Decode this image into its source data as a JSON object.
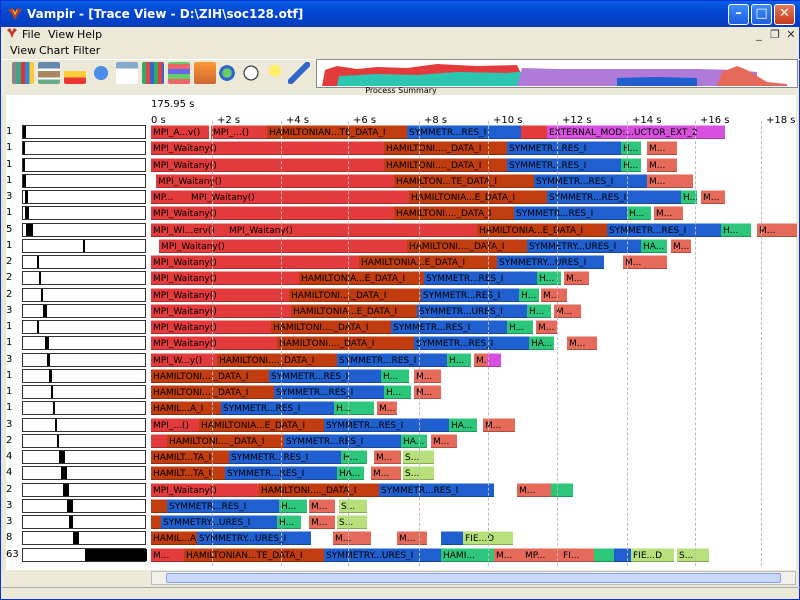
{
  "window": {
    "title": "Vampir - [Trace View - D:\\ZIH\\soc128.otf]"
  },
  "menu": [
    "File",
    "View",
    "Help"
  ],
  "menu2": [
    "View",
    "Chart",
    "Filter"
  ],
  "summary": {
    "label": "Process Summary"
  },
  "timeline": {
    "start_time": "175.95 s",
    "ticks": [
      "0 s",
      "+2 s",
      "+4 s",
      "+6 s",
      "+8 s",
      "+10 s",
      "+12 s",
      "+14 s",
      "+16 s",
      "+18 s"
    ]
  },
  "colors": {
    "mpi": "#e33b3b",
    "hamilton": "#c13d0f",
    "symm": "#1f5fcf",
    "ha": "#2cc77a",
    "other": "#e56a5a",
    "ext": "#d84fe0",
    "fie": "#b5e07a"
  },
  "rows": [
    {
      "label": "1",
      "segs": [
        [
          "mpi",
          "MPI_A...v()",
          150,
          208
        ],
        [
          "mpi",
          "MPI_...()",
          210,
          266
        ],
        [
          "hamilton",
          "HAMILTONIAN...TE_DATA_I",
          266,
          406
        ],
        [
          "symm",
          "SYMMETR...RES_I",
          406,
          520
        ],
        [
          "mpi",
          "",
          520,
          546
        ],
        [
          "ext",
          "EXTERNAL_MOD:...UCTOR_EXT_2",
          546,
          724
        ]
      ]
    },
    {
      "label": "1",
      "segs": [
        [
          "mpi",
          "MPI_Waitany()",
          150,
          383
        ],
        [
          "hamilton",
          "HAMILTONI...._DATA_I",
          383,
          506
        ],
        [
          "symm",
          "SYMMETR...RES_I",
          506,
          620
        ],
        [
          "ha",
          "H...",
          620,
          640
        ],
        [
          "other",
          "M...",
          646,
          676
        ]
      ]
    },
    {
      "label": "1",
      "segs": [
        [
          "mpi",
          "MPI_Waitany()",
          150,
          383
        ],
        [
          "hamilton",
          "HAMILTONI...._DATA_I",
          383,
          506
        ],
        [
          "symm",
          "SYMMETR...RES_I",
          506,
          620
        ],
        [
          "ha",
          "H...",
          620,
          640
        ],
        [
          "other",
          "M...",
          646,
          676
        ]
      ]
    },
    {
      "label": "1",
      "segs": [
        [
          "mpi",
          "MPI_Waitany()",
          155,
          393
        ],
        [
          "hamilton",
          "HAMILTON...TE_DATA_I",
          393,
          533
        ],
        [
          "symm",
          "SYMMETR...RES_I",
          533,
          646
        ],
        [
          "other",
          "M...",
          646,
          692
        ]
      ]
    },
    {
      "label": "3",
      "segs": [
        [
          "mpi",
          "MP...",
          150,
          188
        ],
        [
          "mpi",
          "MPI_Waitany()",
          188,
          408
        ],
        [
          "hamilton",
          "HAMILTONIA...E_DATA_I",
          408,
          546
        ],
        [
          "symm",
          "SYMMETR...RES_I",
          546,
          680
        ],
        [
          "ha",
          "H...",
          680,
          696
        ],
        [
          "other",
          "M...",
          700,
          724
        ]
      ]
    },
    {
      "label": "1",
      "segs": [
        [
          "mpi",
          "MPI_Waitany()",
          150,
          393
        ],
        [
          "hamilton",
          "HAMILTONI...._DATA_I",
          393,
          513
        ],
        [
          "symm",
          "SYMMETR...RES_I",
          513,
          626
        ],
        [
          "ha",
          "H...",
          626,
          650
        ],
        [
          "other",
          "M...",
          653,
          682
        ]
      ]
    },
    {
      "label": "5",
      "segs": [
        [
          "mpi",
          "MPI_Wl...erv()",
          150,
          226
        ],
        [
          "mpi",
          "MPI_Waitany()",
          226,
          476
        ],
        [
          "hamilton",
          "HAMILTONIA...E_DATA_I",
          476,
          606
        ],
        [
          "symm",
          "SYMMETR...RES_I",
          606,
          720
        ],
        [
          "ha",
          "H...",
          720,
          750
        ],
        [
          "other",
          "M...",
          756,
          796
        ]
      ]
    },
    {
      "label": "1",
      "segs": [
        [
          "mpi",
          "MPI_Waitany()",
          158,
          406
        ],
        [
          "hamilton",
          "HAMILTONI...._DATA_I",
          406,
          526
        ],
        [
          "symm",
          "SYMMETRY...URES_I",
          526,
          640
        ],
        [
          "ha",
          "HA...",
          640,
          666
        ],
        [
          "other",
          "M...",
          670,
          690
        ]
      ]
    },
    {
      "label": "2",
      "segs": [
        [
          "mpi",
          "MPI_Waitany()",
          150,
          358
        ],
        [
          "hamilton",
          "HAMILTONIA...E_DATA_I",
          358,
          496
        ],
        [
          "symm",
          "SYMMETRY...URES_I",
          496,
          603
        ],
        [
          "other",
          "M...",
          622,
          666
        ]
      ]
    },
    {
      "label": "2",
      "segs": [
        [
          "mpi",
          "MPI_Waitany()",
          150,
          298
        ],
        [
          "hamilton",
          "HAMILTONIA...E_DATA_I",
          298,
          423
        ],
        [
          "symm",
          "SYMMETR...RES_I",
          423,
          536
        ],
        [
          "ha",
          "H...",
          536,
          560
        ],
        [
          "other",
          "M...",
          563,
          588
        ]
      ]
    },
    {
      "label": "2",
      "segs": [
        [
          "mpi",
          "MPI_Waitany()",
          150,
          288
        ],
        [
          "hamilton",
          "HAMILTONI...._DATA_I",
          288,
          420
        ],
        [
          "symm",
          "SYMMETR...RES_I",
          420,
          518
        ],
        [
          "ha",
          "H...",
          518,
          538
        ],
        [
          "other",
          "M...",
          540,
          566
        ]
      ]
    },
    {
      "label": "3",
      "segs": [
        [
          "mpi",
          "MPI_Waitany()",
          150,
          290
        ],
        [
          "hamilton",
          "HAMILTONIA...E_DATA_I",
          290,
          416
        ],
        [
          "symm",
          "SYMMETR...URES_I",
          416,
          526
        ],
        [
          "ha",
          "H...",
          526,
          550
        ],
        [
          "other",
          "M...",
          553,
          580
        ]
      ]
    },
    {
      "label": "1",
      "segs": [
        [
          "mpi",
          "MPI_Waitany()",
          150,
          270
        ],
        [
          "hamilton",
          "HAMILTONI...._DATA_I",
          270,
          390
        ],
        [
          "symm",
          "SYMMETR...RES_I",
          390,
          506
        ],
        [
          "ha",
          "H...",
          506,
          532
        ],
        [
          "other",
          "M...",
          535,
          556
        ]
      ]
    },
    {
      "label": "1",
      "segs": [
        [
          "mpi",
          "MPI_Waitany()",
          150,
          276
        ],
        [
          "hamilton",
          "HAMILTONI...._DATA_I",
          276,
          413
        ],
        [
          "symm",
          "SYMMETR...RES_I",
          413,
          528
        ],
        [
          "ha",
          "HA...",
          528,
          553
        ],
        [
          "other",
          "M...",
          566,
          596
        ]
      ]
    },
    {
      "label": "3",
      "segs": [
        [
          "mpi",
          "MPI_W...y()",
          150,
          216
        ],
        [
          "hamilton",
          "HAMILTONI...._DATA_I",
          216,
          336
        ],
        [
          "symm",
          "SYMMETR...RES_I",
          336,
          446
        ],
        [
          "ha",
          "H...",
          446,
          470
        ],
        [
          "other",
          "M...",
          473,
          486
        ],
        [
          "ext",
          "",
          486,
          500
        ]
      ]
    },
    {
      "label": "1",
      "segs": [
        [
          "hamilton",
          "HAMILTONI...._DATA_I",
          150,
          268
        ],
        [
          "symm",
          "SYMMETR...RES_I",
          268,
          380
        ],
        [
          "ha",
          "H...",
          380,
          408
        ],
        [
          "other",
          "M...",
          413,
          440
        ]
      ]
    },
    {
      "label": "1",
      "segs": [
        [
          "hamilton",
          "HAMILTONI...._DATA_I",
          150,
          273
        ],
        [
          "symm",
          "SYMMETR...RES_I",
          273,
          383
        ],
        [
          "ha",
          "H...",
          383,
          410
        ],
        [
          "other",
          "M...",
          413,
          440
        ]
      ]
    },
    {
      "label": "1",
      "segs": [
        [
          "hamilton",
          "HAMIL...A_I",
          150,
          220
        ],
        [
          "symm",
          "SYMMETR...RES_I",
          220,
          333
        ],
        [
          "ha",
          "H...",
          333,
          373
        ],
        [
          "other",
          "M...",
          376,
          396
        ]
      ]
    },
    {
      "label": "3",
      "segs": [
        [
          "mpi",
          "MPI_...()",
          150,
          198
        ],
        [
          "hamilton",
          "HAMILTONIA...E_DATA_I",
          198,
          323
        ],
        [
          "symm",
          "SYMMETR...RES_I",
          323,
          448
        ],
        [
          "ha",
          "HA...",
          448,
          476
        ],
        [
          "other",
          "M...",
          482,
          514
        ]
      ]
    },
    {
      "label": "2",
      "segs": [
        [
          "mpi",
          "",
          150,
          166
        ],
        [
          "hamilton",
          "HAMILTONI...._DATA_I",
          166,
          283
        ],
        [
          "symm",
          "SYMMETR...RES_I",
          283,
          400
        ],
        [
          "ha",
          "HA...",
          400,
          426
        ],
        [
          "other",
          "M...",
          430,
          456
        ]
      ]
    },
    {
      "label": "4",
      "segs": [
        [
          "hamilton",
          "HAMILT...TA_I",
          150,
          228
        ],
        [
          "symm",
          "SYMMETR...RES_I",
          228,
          340
        ],
        [
          "ha",
          "H...",
          340,
          366
        ],
        [
          "other",
          "M...",
          373,
          400
        ],
        [
          "fie",
          "S...",
          402,
          433
        ]
      ]
    },
    {
      "label": "4",
      "segs": [
        [
          "hamilton",
          "HAMILT...TA_I",
          150,
          224
        ],
        [
          "symm",
          "SYMMETR...RES_I",
          224,
          336
        ],
        [
          "ha",
          "HA...",
          336,
          363
        ],
        [
          "other",
          "M...",
          370,
          400
        ],
        [
          "fie",
          "S...",
          402,
          433
        ]
      ]
    },
    {
      "label": "2",
      "segs": [
        [
          "mpi",
          "MPI_Waitany()",
          150,
          258
        ],
        [
          "hamilton",
          "HAMILTONI...._DATA_I",
          258,
          378
        ],
        [
          "symm",
          "SYMMETR...RES_I",
          378,
          493
        ],
        [
          "other",
          "M...",
          516,
          550
        ],
        [
          "ha",
          "",
          550,
          572
        ]
      ]
    },
    {
      "label": "3",
      "segs": [
        [
          "hamilton",
          "",
          150,
          166
        ],
        [
          "symm",
          "SYMMETR...RES_I",
          166,
          278
        ],
        [
          "ha",
          "H...",
          278,
          306
        ],
        [
          "other",
          "M...",
          308,
          334
        ],
        [
          "fie",
          "S...",
          338,
          366
        ]
      ]
    },
    {
      "label": "3",
      "segs": [
        [
          "hamilton",
          "",
          150,
          160
        ],
        [
          "symm",
          "SYMMETRY...URES_I",
          160,
          276
        ],
        [
          "ha",
          "H...",
          276,
          300
        ],
        [
          "other",
          "M...",
          308,
          334
        ],
        [
          "fie",
          "S...",
          336,
          366
        ]
      ]
    },
    {
      "label": "8",
      "segs": [
        [
          "hamilton",
          "HAMIL...A_I",
          150,
          196
        ],
        [
          "symm",
          "SYMMETRY...URES_I",
          196,
          310
        ],
        [
          "other",
          "M...",
          332,
          370
        ],
        [
          "other",
          "M...",
          396,
          426
        ],
        [
          "symm",
          "",
          440,
          470
        ],
        [
          "fie",
          "FIE...D",
          462,
          512
        ]
      ]
    },
    {
      "label": "63",
      "segs": [
        [
          "mpi",
          "M...",
          150,
          183
        ],
        [
          "hamilton",
          "HAMILTONIAN...TE_DATA_I",
          183,
          323
        ],
        [
          "symm",
          "SYMMETRY...URES_I",
          323,
          440
        ],
        [
          "ha",
          "HAMI...",
          440,
          493
        ],
        [
          "other",
          "M...",
          493,
          522
        ],
        [
          "other",
          "MP...",
          522,
          560
        ],
        [
          "other",
          "FI...",
          560,
          593
        ],
        [
          "ha",
          "",
          593,
          613
        ],
        [
          "symm",
          "",
          613,
          630
        ],
        [
          "fie",
          "FIE...D",
          630,
          673
        ],
        [
          "fie",
          "S...",
          676,
          708
        ]
      ]
    }
  ]
}
